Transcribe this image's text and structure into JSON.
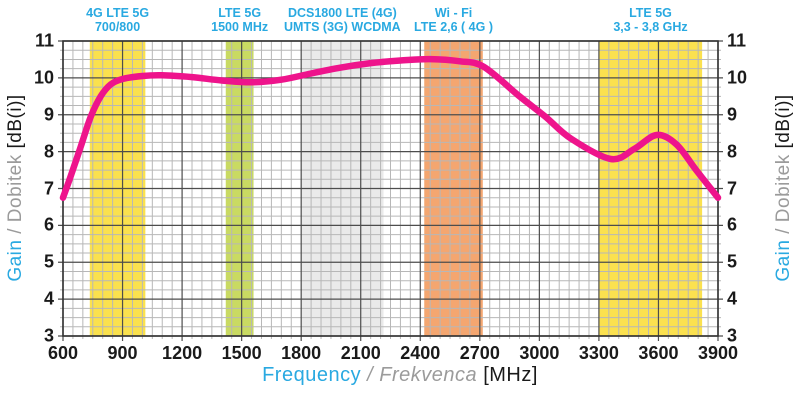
{
  "colors": {
    "accent_cyan": "#29A9E1",
    "text_gray": "#9B9B9B",
    "text_black": "#1A1A1A",
    "curve_pink": "#EE148C",
    "grid_major": "#4D4D4D",
    "grid_minor": "#B7B7B7",
    "axis_border": "#333333",
    "background": "#FFFFFF"
  },
  "chart_data": {
    "type": "line",
    "title": "",
    "xlabel_parts": [
      {
        "text": "Frequency",
        "color": "#29A9E1",
        "italic": false
      },
      {
        "text": " / ",
        "color": "#9B9B9B",
        "italic": true
      },
      {
        "text": "Frekvenca",
        "color": "#9B9B9B",
        "italic": true
      },
      {
        "text": " [MHz]",
        "color": "#1A1A1A",
        "italic": false
      }
    ],
    "ylabel_parts": [
      {
        "text": "Gain",
        "color": "#29A9E1",
        "italic": false
      },
      {
        "text": " / ",
        "color": "#9B9B9B",
        "italic": false
      },
      {
        "text": "Dobitek",
        "color": "#9B9B9B",
        "italic": false
      },
      {
        "text": "  [dB(i)]",
        "color": "#1A1A1A",
        "italic": false
      }
    ],
    "x_axis": {
      "unit": "MHz",
      "min": 600,
      "max": 3900,
      "major_step": 300,
      "minor_step": 50,
      "tick_labels": [
        600,
        900,
        1200,
        1500,
        1800,
        2100,
        2400,
        2700,
        3000,
        3300,
        3600,
        3900
      ]
    },
    "y_axis": {
      "unit": "dB(i)",
      "min": 3,
      "max": 11,
      "major_step": 1,
      "minor_step": 0.25,
      "tick_labels": [
        11,
        10,
        9,
        8,
        7,
        6,
        5,
        4,
        3
      ]
    },
    "bands": [
      {
        "label_line1": "4G LTE 5G",
        "label_line2": "700/800",
        "from_mhz": 735,
        "to_mhz": 1015,
        "color": "#FAE14E"
      },
      {
        "label_line1": "LTE 5G",
        "label_line2": "1500 MHz",
        "from_mhz": 1420,
        "to_mhz": 1560,
        "color": "#C9DA62"
      },
      {
        "label_line1": "DCS1800 LTE (4G)",
        "label_line2": "UMTS (3G) WCDMA",
        "from_mhz": 1800,
        "to_mhz": 2215,
        "color": "#EAEAEA"
      },
      {
        "label_line1": "Wi - Fi",
        "label_line2": "LTE 2,6 ( 4G )",
        "from_mhz": 2420,
        "to_mhz": 2715,
        "color": "#F4A670"
      },
      {
        "label_line1": "LTE 5G",
        "label_line2": "3,3 - 3,8 GHz",
        "from_mhz": 3300,
        "to_mhz": 3820,
        "color": "#FBE14F"
      }
    ],
    "series": [
      {
        "name": "Gain",
        "color": "#EE148C",
        "points": [
          [
            600,
            6.75
          ],
          [
            640,
            7.35
          ],
          [
            690,
            8.15
          ],
          [
            740,
            8.95
          ],
          [
            790,
            9.5
          ],
          [
            840,
            9.82
          ],
          [
            900,
            9.97
          ],
          [
            1000,
            10.05
          ],
          [
            1100,
            10.07
          ],
          [
            1250,
            10.02
          ],
          [
            1400,
            9.93
          ],
          [
            1550,
            9.88
          ],
          [
            1700,
            9.95
          ],
          [
            1850,
            10.12
          ],
          [
            2000,
            10.28
          ],
          [
            2150,
            10.4
          ],
          [
            2300,
            10.47
          ],
          [
            2450,
            10.51
          ],
          [
            2600,
            10.45
          ],
          [
            2720,
            10.3
          ],
          [
            2900,
            9.5
          ],
          [
            3030,
            8.95
          ],
          [
            3160,
            8.35
          ],
          [
            3360,
            7.8
          ],
          [
            3480,
            8.08
          ],
          [
            3590,
            8.45
          ],
          [
            3690,
            8.2
          ],
          [
            3790,
            7.5
          ],
          [
            3900,
            6.75
          ]
        ]
      }
    ]
  }
}
